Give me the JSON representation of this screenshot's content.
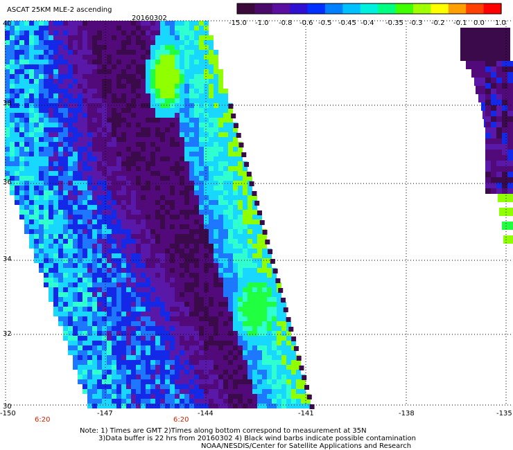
{
  "header": {
    "title": "ASCAT 25KM MLE-2 ascending",
    "date": "20160302"
  },
  "colorbar": {
    "labels": [
      "-15.0",
      "-1.0",
      "-0.8",
      "-0.6",
      "-0.5",
      "-0.45",
      "-0.4",
      "-0.35",
      "-0.3",
      "-0.2",
      "-0.1",
      "0.0",
      "1.0"
    ],
    "colors": [
      "#3a0a3a",
      "#4a0a6a",
      "#5a0fa0",
      "#3010d0",
      "#0030ff",
      "#0080ff",
      "#00c0ff",
      "#00f0e0",
      "#00ff80",
      "#40ff00",
      "#a0ff00",
      "#ffff00",
      "#ffa000",
      "#ff4000",
      "#ff0000"
    ]
  },
  "axes": {
    "lat_labels": [
      "40",
      "38",
      "36",
      "34",
      "32",
      "30"
    ],
    "lon_labels": [
      "-150",
      "-147",
      "-144",
      "-141",
      "-138",
      "-135"
    ],
    "time_labels": [
      "6:20",
      "6:20"
    ]
  },
  "notes": {
    "line1": "Note: 1) Times are GMT 2)Times along bottom correspond to measurement at 35N",
    "line2": "3)Data buffer is 22 hrs from 20160302 4) Black wind barbs indicate possible contamination",
    "line3": "NOAA/NESDIS/Center for Satellite Applications and Research"
  },
  "palette": {
    "dark": "#3a0a4a",
    "purple": "#520a7a",
    "violet": "#5a18a8",
    "blue": "#1428e8",
    "lightblue": "#1e78ff",
    "cyan": "#18d8ff",
    "aqua": "#30ffd0",
    "green": "#20ff40",
    "lime": "#90ff00"
  }
}
